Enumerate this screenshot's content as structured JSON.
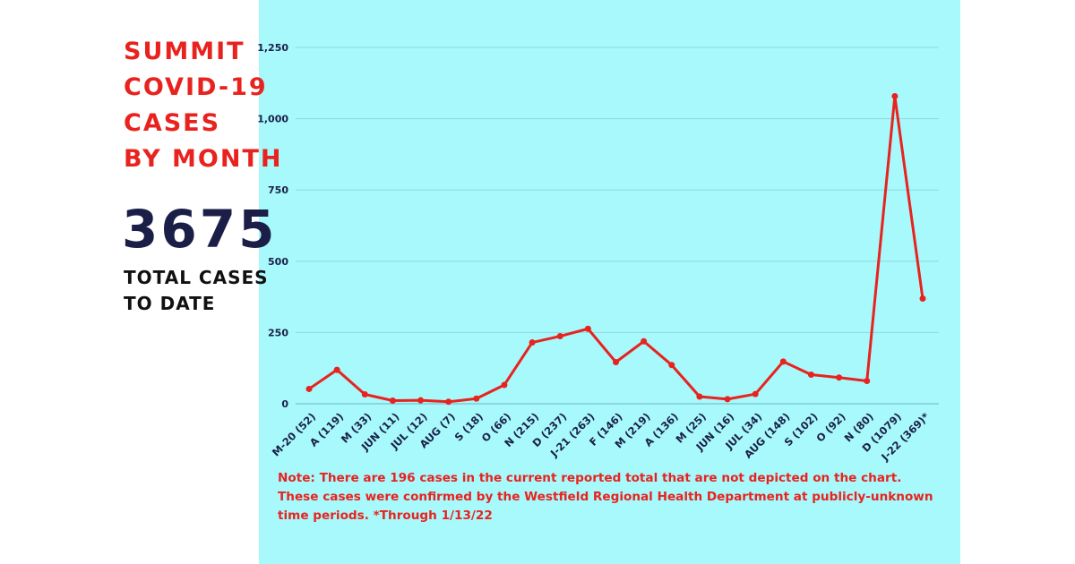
{
  "title_lines": [
    "SUMMIT",
    "COVID-19",
    "CASES",
    "BY MONTH"
  ],
  "total": "3675",
  "total_label_lines": [
    "TOTAL CASES",
    "TO DATE"
  ],
  "note": "Note: There are 196 cases in the current reported total that are not depicted on the chart. These cases were confirmed by the Westfield Regional Health Department at publicly-unknown time periods.   *Through 1/13/22",
  "colors": {
    "line": "#e8231f",
    "panel": "#a7f9fb",
    "axis_text": "#1b1f47"
  },
  "chart_data": {
    "type": "line",
    "title": "Summit COVID-19 Cases by Month",
    "xlabel": "",
    "ylabel": "",
    "ylim": [
      0,
      1250
    ],
    "yticks": [
      0,
      250,
      500,
      750,
      1000,
      1250
    ],
    "ytick_labels": [
      "0",
      "250",
      "500",
      "750",
      "1,000",
      "1,250"
    ],
    "grid": true,
    "categories": [
      "M-20 (52)",
      "A (119)",
      "M (33)",
      "JUN (11)",
      "JUL (12)",
      "AUG (7)",
      "S (18)",
      "O (66)",
      "N (215)",
      "D (237)",
      "J-21 (263)",
      "F (146)",
      "M (219)",
      "A (136)",
      "M (25)",
      "JUN (16)",
      "JUL (34)",
      "AUG (148)",
      "S (102)",
      "O (92)",
      "N (80)",
      "D (1079)",
      "J-22 (369)*"
    ],
    "values": [
      52,
      119,
      33,
      11,
      12,
      7,
      18,
      66,
      215,
      237,
      263,
      146,
      219,
      136,
      25,
      16,
      34,
      148,
      102,
      92,
      80,
      1079,
      369
    ]
  }
}
